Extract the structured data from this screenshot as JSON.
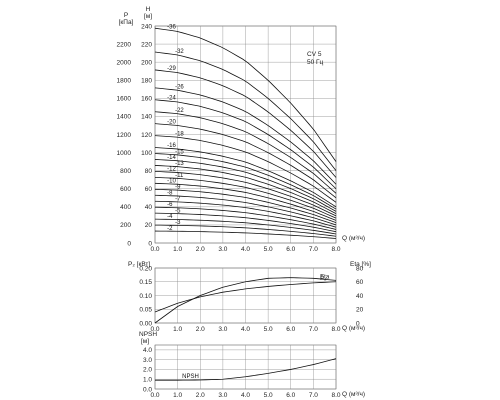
{
  "chart_data": [
    {
      "type": "line",
      "name": "head",
      "legend_lines": [
        "CV 5",
        "50 Гц"
      ],
      "left_unit": [
        "P",
        "[кПа]"
      ],
      "right_unit": [
        "H",
        "[м]"
      ],
      "xlabel": "Q (м³/ч)",
      "xlim": [
        0,
        8.0
      ],
      "x_ticks": [
        "0.0",
        "1.0",
        "2.0",
        "3.0",
        "4.0",
        "5.0",
        "6.0",
        "7.0",
        "8.0"
      ],
      "ylim": [
        0,
        240
      ],
      "h_ticks": [
        0,
        20,
        40,
        60,
        80,
        100,
        120,
        140,
        160,
        180,
        200,
        220,
        240
      ],
      "p_ticks": [
        0,
        200,
        400,
        600,
        800,
        1000,
        1200,
        1400,
        1600,
        1800,
        2000,
        2200
      ],
      "x": [
        0,
        1,
        2,
        3,
        4,
        5,
        6,
        7,
        8
      ],
      "stages": [
        2,
        3,
        4,
        5,
        6,
        7,
        8,
        9,
        10,
        11,
        12,
        13,
        14,
        15,
        16,
        18,
        20,
        22,
        24,
        26,
        29,
        32,
        36
      ],
      "stage_labels": [
        "-2",
        "-3",
        "-4",
        "-5",
        "-6",
        "-7",
        "-8",
        "-9",
        "-10",
        "-11",
        "-12",
        "-13",
        "-14",
        "-15",
        "-16",
        "-18",
        "-20",
        "-22",
        "-24",
        "-26",
        "-29",
        "-32",
        "-36"
      ],
      "head_per_stage": [
        6.6,
        6.5,
        6.3,
        6.0,
        5.6,
        5.0,
        4.3,
        3.5,
        2.5
      ]
    },
    {
      "type": "line",
      "name": "power-efficiency",
      "left_unit": "P₂ [кВт]",
      "right_unit": "Eta [%]",
      "xlabel": "Q (м³/ч)",
      "xlim": [
        0,
        8.0
      ],
      "x_ticks": [
        "0.0",
        "1.0",
        "2.0",
        "3.0",
        "4.0",
        "5.0",
        "6.0",
        "7.0",
        "8.0"
      ],
      "y_ticks": [
        "0.00",
        "0.05",
        "0.10",
        "0.15",
        "0.20"
      ],
      "y_vals": [
        0,
        0.05,
        0.1,
        0.15,
        0.2
      ],
      "ylim": [
        0,
        0.2
      ],
      "y2_ticks": [
        "0",
        "20",
        "40",
        "60",
        "80"
      ],
      "y2_vals": [
        0,
        20,
        40,
        60,
        80
      ],
      "y2lim": [
        0,
        80
      ],
      "series": [
        {
          "name": "Eta",
          "axis": "right",
          "x": [
            0,
            1,
            2,
            3,
            4,
            5,
            6,
            7,
            8
          ],
          "values": [
            0,
            24,
            40,
            52,
            60,
            65,
            66,
            65,
            62
          ]
        },
        {
          "name": "P₂",
          "axis": "left",
          "x": [
            0,
            1,
            2,
            3,
            4,
            5,
            6,
            7,
            8
          ],
          "values": [
            0.04,
            0.072,
            0.095,
            0.112,
            0.124,
            0.133,
            0.14,
            0.146,
            0.15
          ]
        }
      ]
    },
    {
      "type": "line",
      "name": "npsh",
      "ylabel_lines": [
        "NPSH",
        "[м]"
      ],
      "xlabel": "Q (м³/ч)",
      "xlim": [
        0,
        8.0
      ],
      "x_ticks": [
        "0.0",
        "1.0",
        "2.0",
        "3.0",
        "4.0",
        "5.0",
        "6.0",
        "7.0",
        "8.0"
      ],
      "y_ticks": [
        "0.0",
        "1.0",
        "2.0",
        "3.0",
        "4.0"
      ],
      "y_vals": [
        0,
        1,
        2,
        3,
        4
      ],
      "ylim": [
        0,
        4.5
      ],
      "series": [
        {
          "name": "NPSH",
          "x": [
            0,
            1,
            2,
            3,
            4,
            5,
            6,
            7,
            8
          ],
          "values": [
            0.9,
            0.9,
            0.92,
            1.0,
            1.25,
            1.6,
            2.0,
            2.5,
            3.1
          ]
        }
      ]
    }
  ]
}
